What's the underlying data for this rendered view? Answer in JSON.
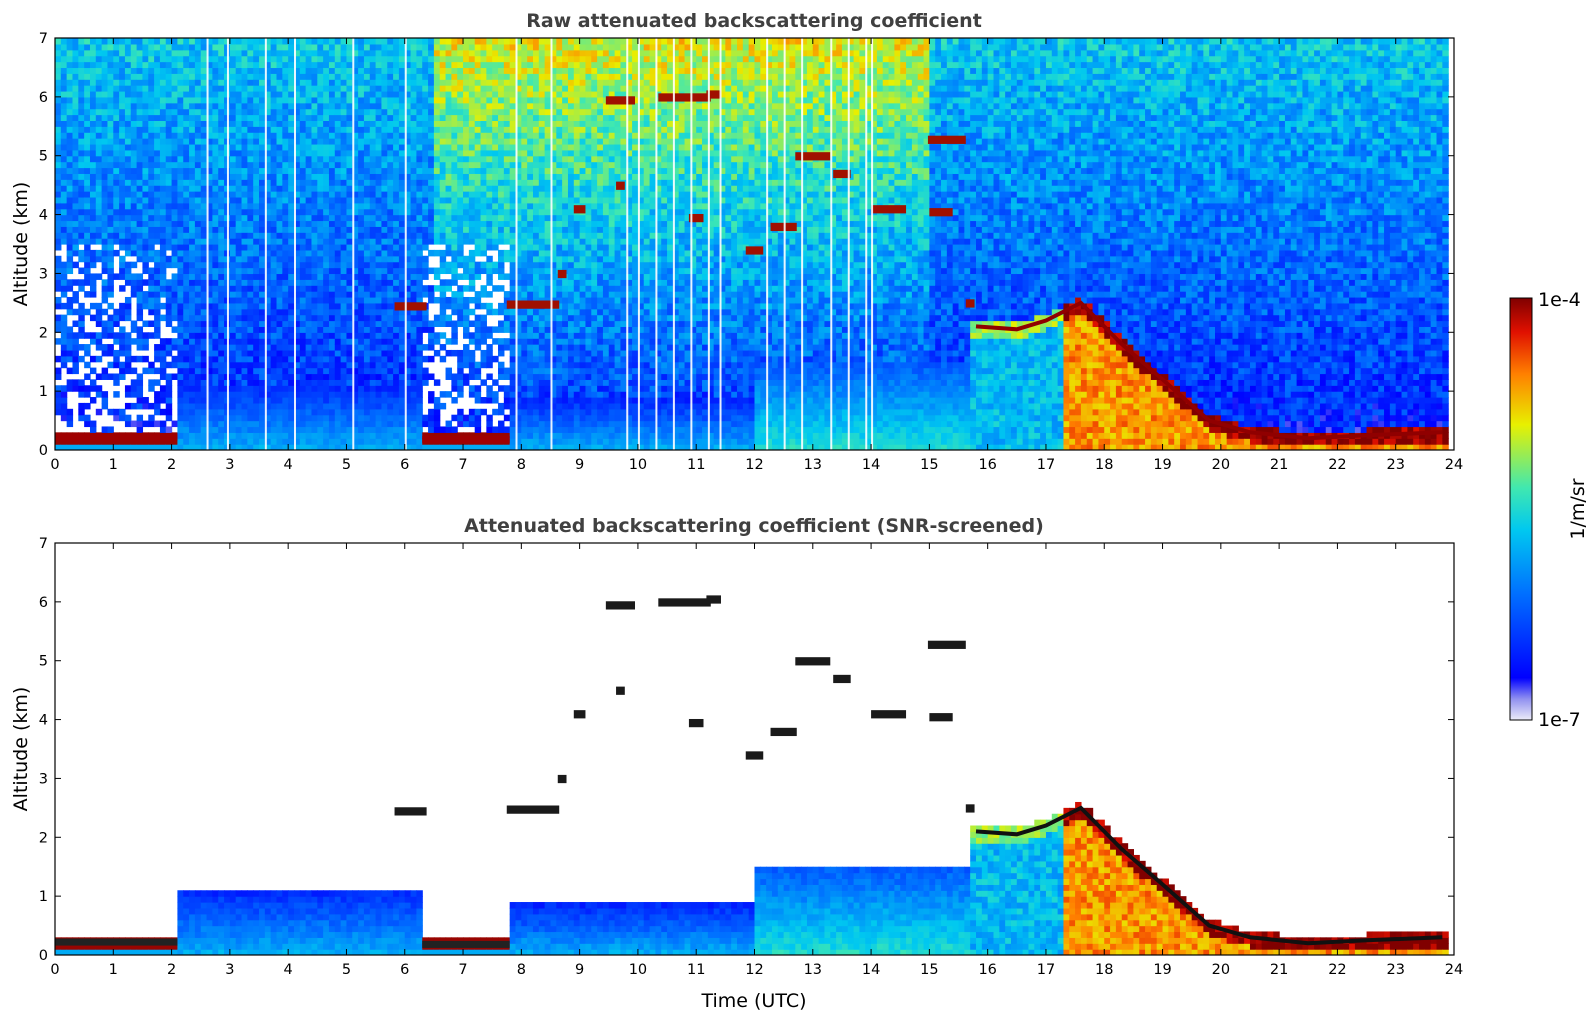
{
  "chart_data": [
    {
      "type": "heatmap",
      "title": "Raw attenuated backscattering coefficient",
      "xlabel": "",
      "ylabel": "Altitude (km)",
      "xlim": [
        0,
        24
      ],
      "ylim": [
        0,
        7
      ],
      "xticks": [
        "0",
        "1",
        "2",
        "3",
        "4",
        "5",
        "6",
        "7",
        "8",
        "9",
        "10",
        "11",
        "12",
        "13",
        "14",
        "15",
        "16",
        "17",
        "18",
        "19",
        "20",
        "21",
        "22",
        "23",
        "24"
      ],
      "yticks": [
        "0",
        "1",
        "2",
        "3",
        "4",
        "5",
        "6",
        "7"
      ],
      "screened": false
    },
    {
      "type": "heatmap",
      "title": "Attenuated backscattering coefficient (SNR-screened)",
      "xlabel": "Time (UTC)",
      "ylabel": "Altitude (km)",
      "xlim": [
        0,
        24
      ],
      "ylim": [
        0,
        7
      ],
      "xticks": [
        "0",
        "1",
        "2",
        "3",
        "4",
        "5",
        "6",
        "7",
        "8",
        "9",
        "10",
        "11",
        "12",
        "13",
        "14",
        "15",
        "16",
        "17",
        "18",
        "19",
        "20",
        "21",
        "22",
        "23",
        "24"
      ],
      "yticks": [
        "0",
        "1",
        "2",
        "3",
        "4",
        "5",
        "6",
        "7"
      ],
      "screened": true
    }
  ],
  "colorbar": {
    "label": "1/m/sr",
    "max_label": "1e-4",
    "min_label": "1e-7",
    "scale": "log",
    "colors": [
      "#e8e8f8",
      "#0000ff",
      "#00a0ff",
      "#30e0c0",
      "#f0f000",
      "#ff6000",
      "#800000"
    ]
  },
  "features": {
    "boundary_layer": [
      {
        "t0": 0.0,
        "t1": 2.1,
        "h": 0.22
      },
      {
        "t0": 6.3,
        "t1": 7.8,
        "h": 0.18
      }
    ],
    "aerosol_top": [
      {
        "t0": 2.1,
        "t1": 6.3,
        "h": 1.15
      },
      {
        "t0": 7.8,
        "t1": 12.0,
        "h": 0.9
      },
      {
        "t0": 12.0,
        "t1": 17.2,
        "h": 1.5
      }
    ],
    "cloud_layer": [
      {
        "t": 15.8,
        "h": 2.1
      },
      {
        "t": 16.5,
        "h": 2.05
      },
      {
        "t": 17.0,
        "h": 2.2
      },
      {
        "t": 17.6,
        "h": 2.5
      },
      {
        "t": 18.3,
        "h": 1.8
      },
      {
        "t": 19.0,
        "h": 1.2
      },
      {
        "t": 19.8,
        "h": 0.5
      },
      {
        "t": 20.5,
        "h": 0.3
      },
      {
        "t": 21.5,
        "h": 0.2
      },
      {
        "t": 22.5,
        "h": 0.25
      },
      {
        "t": 23.8,
        "h": 0.3
      }
    ],
    "cloud_patches": [
      {
        "t": 6.1,
        "h": 2.45,
        "w": 0.55
      },
      {
        "t": 8.2,
        "h": 2.48,
        "w": 0.9
      },
      {
        "t": 8.7,
        "h": 3.0,
        "w": 0.15
      },
      {
        "t": 9.0,
        "h": 4.1,
        "w": 0.2
      },
      {
        "t": 9.7,
        "h": 5.95,
        "w": 0.5
      },
      {
        "t": 10.8,
        "h": 6.0,
        "w": 0.9
      },
      {
        "t": 11.3,
        "h": 6.05,
        "w": 0.25
      },
      {
        "t": 9.7,
        "h": 4.5,
        "w": 0.15
      },
      {
        "t": 11.0,
        "h": 3.95,
        "w": 0.25
      },
      {
        "t": 12.5,
        "h": 3.8,
        "w": 0.45
      },
      {
        "t": 12.0,
        "h": 3.4,
        "w": 0.3
      },
      {
        "t": 13.0,
        "h": 5.0,
        "w": 0.6
      },
      {
        "t": 13.5,
        "h": 4.7,
        "w": 0.3
      },
      {
        "t": 14.3,
        "h": 4.1,
        "w": 0.6
      },
      {
        "t": 15.3,
        "h": 5.28,
        "w": 0.65
      },
      {
        "t": 15.2,
        "h": 4.05,
        "w": 0.4
      },
      {
        "t": 15.7,
        "h": 2.5,
        "w": 0.15
      }
    ]
  }
}
